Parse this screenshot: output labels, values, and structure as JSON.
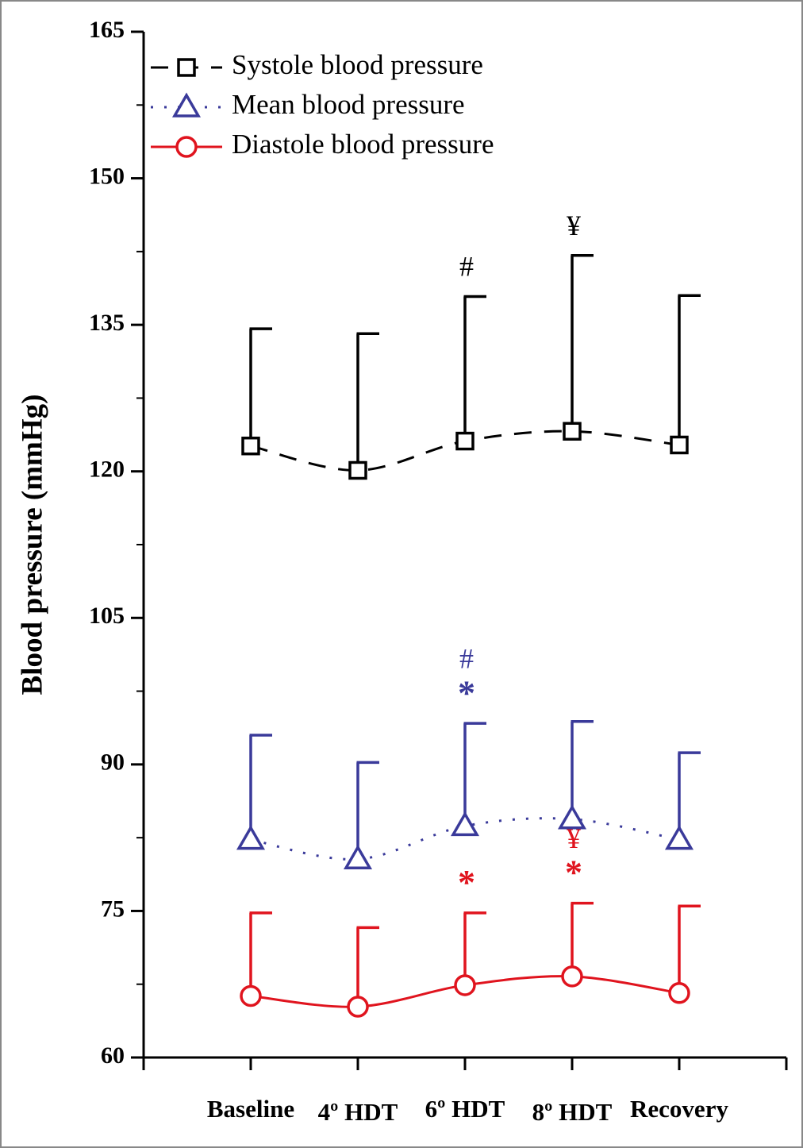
{
  "chart_data": {
    "type": "line",
    "ylabel": "Blood pressure (mmHg)",
    "categories": [
      "Baseline",
      "4º HDT",
      "6º HDT",
      "8º HDT",
      "Recovery"
    ],
    "series": [
      {
        "name": "Systole blood pressure",
        "color": "#000000",
        "line_style": "dashed",
        "marker": "square",
        "values": [
          122.6,
          120.1,
          123.1,
          124.1,
          122.7
        ],
        "errors": [
          12.0,
          14.0,
          14.8,
          18.0,
          15.3
        ],
        "annotations": [
          null,
          null,
          [
            "#"
          ],
          [
            "¥"
          ],
          null
        ]
      },
      {
        "name": "Mean blood pressure",
        "color": "#3a3a9a",
        "line_style": "dotted",
        "marker": "triangle",
        "values": [
          82.3,
          80.3,
          83.7,
          84.4,
          82.3
        ],
        "errors": [
          10.7,
          9.9,
          10.5,
          10.0,
          8.9
        ],
        "annotations": [
          null,
          null,
          [
            "*",
            "#"
          ],
          null,
          null
        ]
      },
      {
        "name": "Diastole blood pressure",
        "color": "#e0141e",
        "line_style": "solid",
        "marker": "circle",
        "values": [
          66.3,
          65.2,
          67.4,
          68.3,
          66.6
        ],
        "errors": [
          8.5,
          8.1,
          7.4,
          7.5,
          8.9
        ],
        "annotations": [
          null,
          null,
          [
            "*"
          ],
          [
            "*",
            "¥"
          ],
          null
        ]
      }
    ],
    "ylim": [
      60,
      165
    ],
    "yticks": [
      60,
      75,
      90,
      105,
      120,
      135,
      150,
      165
    ],
    "legend": "upper left"
  }
}
